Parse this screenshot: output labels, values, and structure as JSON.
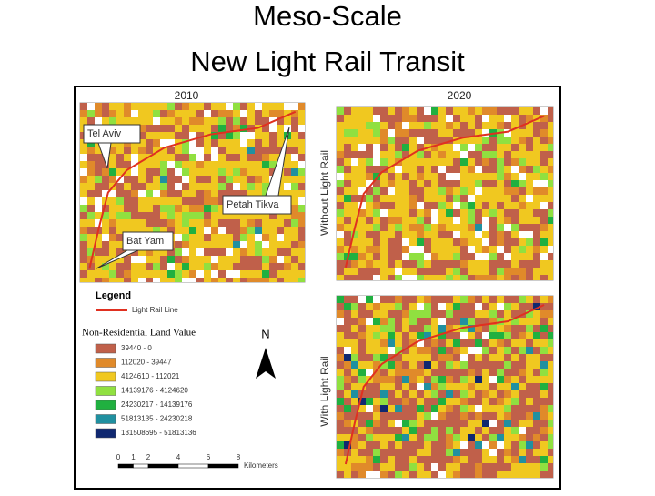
{
  "title": [
    "Meso-Scale",
    "New Light Rail Transit"
  ],
  "panels": {
    "year_left": "2010",
    "year_right": "2020",
    "without": "Without Light Rail",
    "with": "With Light Rail"
  },
  "places": [
    "Tel Aviv",
    "Petah Tikva",
    "Bat Yam"
  ],
  "legend": {
    "title": "Legend",
    "line": "Light Rail Line",
    "subtitle": "Non-Residential Land Value",
    "classes": [
      "39440 - 0",
      "112020 - 39447",
      "4124610 - 112021",
      "14139176 - 4124620",
      "24230217 - 14139176",
      "51813135 - 24230218",
      "131508695 - 51813136"
    ]
  },
  "north": "N",
  "scale": {
    "ticks": [
      0,
      1,
      2,
      4,
      6,
      8
    ],
    "unit": "Kilometers"
  }
}
